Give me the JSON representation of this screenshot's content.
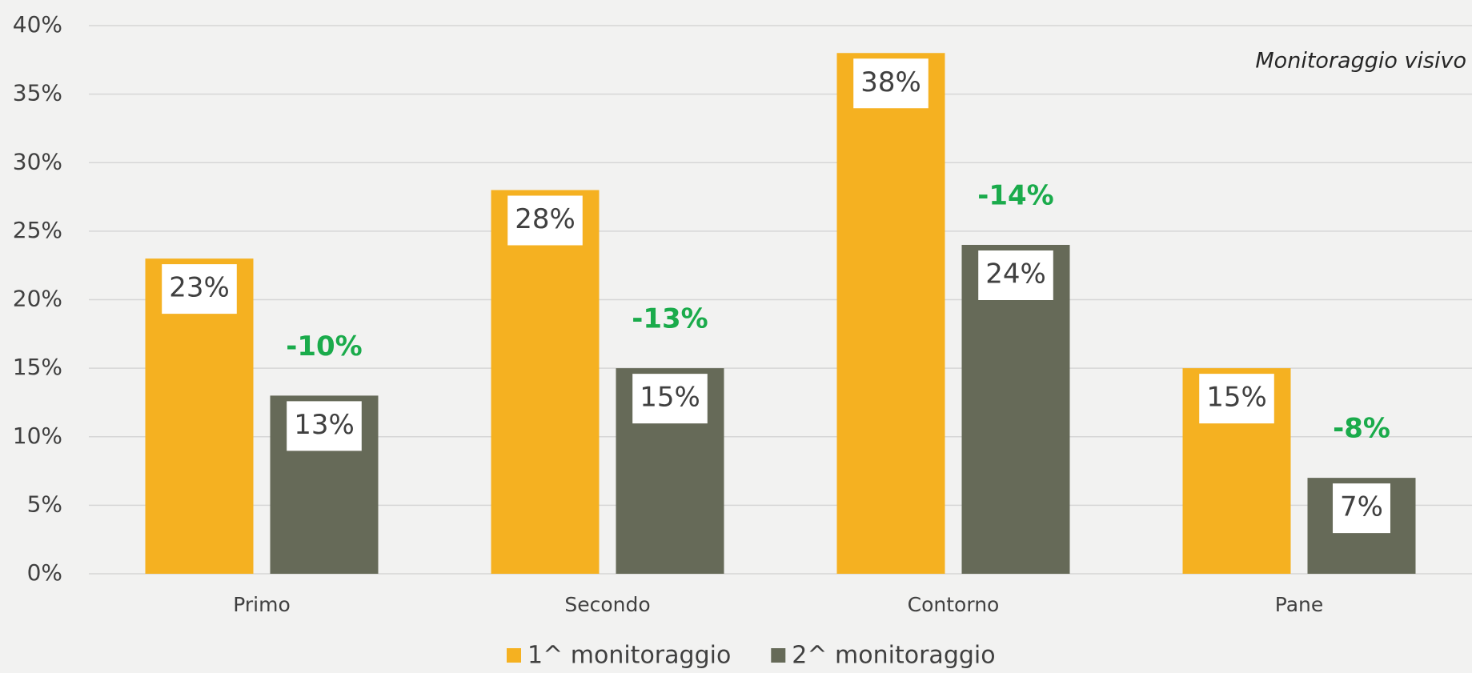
{
  "chart_data": {
    "type": "bar",
    "annotation": "Monitoraggio visivo",
    "categories": [
      "Primo",
      "Secondo",
      "Contorno",
      "Pane"
    ],
    "series": [
      {
        "name": "1^ monitoraggio",
        "color": "#f5b121",
        "values": [
          23,
          28,
          38,
          15
        ],
        "value_labels": [
          "23%",
          "28%",
          "38%",
          "15%"
        ]
      },
      {
        "name": "2^ monitoraggio",
        "color": "#666a58",
        "values": [
          13,
          15,
          24,
          7
        ],
        "value_labels": [
          "13%",
          "15%",
          "24%",
          "7%"
        ]
      }
    ],
    "changes": [
      "-10%",
      "-13%",
      "-14%",
      "-8%"
    ],
    "change_color": "#1aab4b",
    "ylim": [
      0,
      40
    ],
    "yticks": [
      {
        "value": 0,
        "label": "0%"
      },
      {
        "value": 5,
        "label": "5%"
      },
      {
        "value": 10,
        "label": "10%"
      },
      {
        "value": 15,
        "label": "15%"
      },
      {
        "value": 20,
        "label": "20%"
      },
      {
        "value": 25,
        "label": "25%"
      },
      {
        "value": 30,
        "label": "30%"
      },
      {
        "value": 35,
        "label": "35%"
      },
      {
        "value": 40,
        "label": "40%"
      }
    ],
    "grid": true
  }
}
